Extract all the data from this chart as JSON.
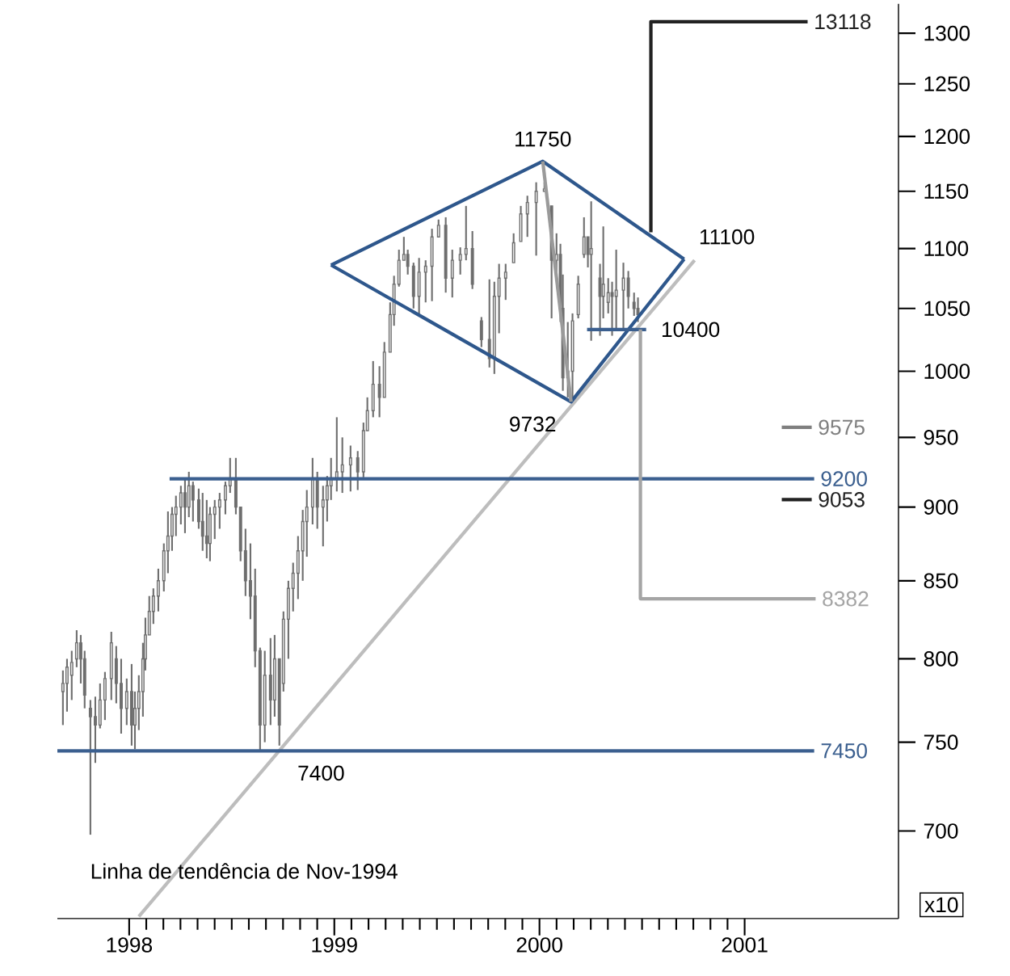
{
  "chart_data": {
    "type": "candlestick",
    "color": "#6e6e6e",
    "ylabel": "x10",
    "log": "y",
    "xlim": [
      1997.65,
      2001.75
    ],
    "xticks": [
      1998,
      1999,
      2000,
      2001
    ],
    "ylim": [
      654,
      1330
    ],
    "yticks": [
      700,
      750,
      800,
      850,
      900,
      950,
      1000,
      1050,
      1100,
      1150,
      1200,
      1250,
      1300
    ],
    "x": [
      1997.677,
      1997.697,
      1997.72,
      1997.744,
      1997.764,
      1997.783,
      1997.811,
      1997.835,
      1997.858,
      1997.882,
      1997.913,
      1997.937,
      1997.961,
      1997.988,
      1998.012,
      1998.028,
      1998.047,
      1998.067,
      1998.079,
      1998.098,
      1998.118,
      1998.142,
      1998.169,
      1998.189,
      1998.209,
      1998.228,
      1998.252,
      1998.272,
      1998.291,
      1998.311,
      1998.339,
      1998.358,
      1998.378,
      1998.394,
      1998.417,
      1998.441,
      1998.469,
      1998.492,
      1998.52,
      1998.543,
      1998.567,
      1998.591,
      1998.614,
      1998.638,
      1998.661,
      1998.689,
      1998.709,
      1998.732,
      1998.752,
      1998.776,
      1998.799,
      1998.823,
      1998.846,
      1998.866,
      1998.894,
      1998.917,
      1998.945,
      1998.965,
      1998.984,
      1999.012,
      1999.039,
      1999.079,
      1999.114,
      1999.142,
      1999.161,
      1999.189,
      1999.22,
      1999.244,
      1999.272,
      1999.291,
      1999.315,
      1999.339,
      1999.358,
      1999.386,
      1999.413,
      1999.445,
      1999.476,
      1999.508,
      1999.543,
      1999.575,
      1999.614,
      1999.642,
      1999.673,
      1999.717,
      1999.756,
      1999.78,
      1999.803,
      1999.835,
      1999.874,
      1999.909,
      1999.941,
      1999.984,
      2000.024,
      2000.059,
      2000.083,
      2000.102,
      2000.114,
      2000.138,
      2000.161,
      2000.189,
      2000.217,
      2000.236,
      2000.252,
      2000.295,
      2000.311,
      2000.335,
      2000.354,
      2000.374,
      2000.409,
      2000.433,
      2000.461,
      2000.48
    ],
    "ohlc": [
      [
        780,
        793,
        760,
        785
      ],
      [
        785,
        800,
        768,
        795
      ],
      [
        790,
        805,
        775,
        798
      ],
      [
        800,
        818,
        795,
        810
      ],
      [
        810,
        815,
        785,
        800
      ],
      [
        800,
        805,
        770,
        778
      ],
      [
        770,
        775,
        698,
        765
      ],
      [
        765,
        777,
        738,
        760
      ],
      [
        760,
        785,
        758,
        775
      ],
      [
        775,
        792,
        763,
        788
      ],
      [
        788,
        817,
        775,
        810
      ],
      [
        800,
        808,
        773,
        785
      ],
      [
        785,
        800,
        755,
        770
      ],
      [
        770,
        788,
        760,
        780
      ],
      [
        780,
        797,
        748,
        760
      ],
      [
        760,
        780,
        746,
        770
      ],
      [
        770,
        790,
        757,
        780
      ],
      [
        780,
        810,
        765,
        800
      ],
      [
        800,
        826,
        793,
        815
      ],
      [
        815,
        840,
        815,
        830
      ],
      [
        830,
        845,
        822,
        840
      ],
      [
        840,
        858,
        830,
        850
      ],
      [
        850,
        875,
        843,
        870
      ],
      [
        870,
        897,
        855,
        880
      ],
      [
        880,
        900,
        870,
        895
      ],
      [
        895,
        908,
        880,
        900
      ],
      [
        900,
        915,
        888,
        910
      ],
      [
        910,
        920,
        882,
        900
      ],
      [
        900,
        925,
        893,
        915
      ],
      [
        915,
        918,
        890,
        905
      ],
      [
        905,
        913,
        885,
        890
      ],
      [
        890,
        910,
        870,
        880
      ],
      [
        880,
        905,
        865,
        875
      ],
      [
        875,
        900,
        863,
        895
      ],
      [
        895,
        905,
        878,
        900
      ],
      [
        900,
        910,
        885,
        905
      ],
      [
        905,
        918,
        895,
        915
      ],
      [
        915,
        935,
        910,
        920
      ],
      [
        920,
        935,
        895,
        900
      ],
      [
        900,
        900,
        863,
        870
      ],
      [
        870,
        885,
        840,
        850
      ],
      [
        850,
        875,
        825,
        840
      ],
      [
        840,
        858,
        795,
        805
      ],
      [
        805,
        807,
        745,
        760
      ],
      [
        760,
        805,
        750,
        790
      ],
      [
        790,
        813,
        760,
        775
      ],
      [
        775,
        815,
        765,
        800
      ],
      [
        800,
        800,
        748,
        760
      ],
      [
        785,
        830,
        780,
        825
      ],
      [
        825,
        850,
        800,
        845
      ],
      [
        845,
        862,
        830,
        855
      ],
      [
        855,
        880,
        838,
        870
      ],
      [
        870,
        898,
        850,
        890
      ],
      [
        890,
        912,
        866,
        900
      ],
      [
        900,
        935,
        888,
        920
      ],
      [
        920,
        925,
        885,
        900
      ],
      [
        900,
        915,
        873,
        905
      ],
      [
        905,
        922,
        890,
        915
      ],
      [
        915,
        935,
        905,
        920
      ],
      [
        920,
        965,
        911,
        925
      ],
      [
        925,
        950,
        910,
        930
      ],
      [
        930,
        944,
        911,
        935
      ],
      [
        935,
        940,
        912,
        925
      ],
      [
        925,
        961,
        921,
        955
      ],
      [
        955,
        980,
        955,
        970
      ],
      [
        970,
        1008,
        965,
        990
      ],
      [
        990,
        1004,
        965,
        980
      ],
      [
        980,
        1023,
        980,
        1015
      ],
      [
        1015,
        1055,
        1015,
        1045
      ],
      [
        1045,
        1077,
        1036,
        1070
      ],
      [
        1070,
        1099,
        1068,
        1090
      ],
      [
        1090,
        1110,
        1090,
        1095
      ],
      [
        1095,
        1099,
        1078,
        1085
      ],
      [
        1085,
        1088,
        1050,
        1060
      ],
      [
        1060,
        1092,
        1044,
        1080
      ],
      [
        1080,
        1090,
        1055,
        1085
      ],
      [
        1085,
        1117,
        1056,
        1110
      ],
      [
        1110,
        1125,
        1110,
        1120
      ],
      [
        1120,
        1127,
        1063,
        1075
      ],
      [
        1075,
        1099,
        1059,
        1090
      ],
      [
        1090,
        1101,
        1078,
        1095
      ],
      [
        1095,
        1137,
        1090,
        1100
      ],
      [
        1100,
        1115,
        1066,
        1070
      ],
      [
        1040,
        1043,
        1019,
        1025
      ],
      [
        1025,
        1074,
        1003,
        1010
      ],
      [
        1010,
        1072,
        998,
        1060
      ],
      [
        1060,
        1087,
        1030,
        1075
      ],
      [
        1075,
        1087,
        1057,
        1080
      ],
      [
        1088,
        1113,
        1088,
        1105
      ],
      [
        1106,
        1137,
        1106,
        1130
      ],
      [
        1130,
        1146,
        1110,
        1140
      ],
      [
        1140,
        1158,
        1094,
        1150
      ],
      [
        1150,
        1158,
        1150,
        1152
      ],
      [
        1137,
        1137,
        1042,
        1090
      ],
      [
        1090,
        1113,
        1076,
        1095
      ],
      [
        1095,
        1104,
        1039,
        1050
      ],
      [
        1050,
        1078,
        985,
        995
      ],
      [
        995,
        1039,
        980,
        1000
      ],
      [
        1000,
        1046,
        976,
        1040
      ],
      [
        1045,
        1077,
        1042,
        1070
      ],
      [
        1095,
        1127,
        1092,
        1110
      ],
      [
        1110,
        1110,
        1084,
        1095
      ],
      [
        1095,
        1141,
        1024,
        1100
      ],
      [
        1075,
        1087,
        1028,
        1060
      ],
      [
        1060,
        1119,
        1042,
        1070
      ],
      [
        1055,
        1075,
        1046,
        1063
      ],
      [
        1063,
        1072,
        1028,
        1060
      ],
      [
        1060,
        1099,
        1032,
        1065
      ],
      [
        1065,
        1088,
        1032,
        1075
      ],
      [
        1075,
        1081,
        1050,
        1060
      ],
      [
        1055,
        1063,
        1044,
        1050
      ],
      [
        1050,
        1059,
        1039,
        1045
      ]
    ],
    "series": [
      {
        "type": "line",
        "color": "#bdbdbd",
        "x": [
          1998.047,
          2000.756
        ],
        "values": [
          655,
          1090
        ]
      },
      {
        "type": "line",
        "color": "#3b5f8f",
        "name": "7450",
        "x": [
          1997.65,
          2001.339
        ],
        "values": [
          745,
          745
        ]
      },
      {
        "type": "line",
        "color": "#3b5f8f",
        "name": "9200",
        "x": [
          1998.197,
          2001.339
        ],
        "values": [
          920,
          920
        ]
      },
      {
        "type": "line",
        "color": "#2e578c",
        "x": [
          1998.984,
          2000.016,
          2000.705
        ],
        "values": [
          1086,
          1177,
          1091
        ]
      },
      {
        "type": "line",
        "color": "#2e578c",
        "x": [
          1998.984,
          2000.154,
          2000.705
        ],
        "values": [
          1086,
          976.6,
          1091
        ]
      },
      {
        "type": "line",
        "color": "#9a9a9a",
        "x": [
          2000.016,
          2000.154
        ],
        "values": [
          1177,
          976.6
        ]
      },
      {
        "type": "line",
        "color": "#3b5f8f",
        "x": [
          2000.232,
          2000.52
        ],
        "values": [
          1033,
          1033
        ]
      },
      {
        "type": "line",
        "color": "#222222",
        "name": "13118",
        "x": [
          2000.543,
          2000.543,
          2001.307
        ],
        "values": [
          1114,
          1311.8,
          1311.8
        ]
      },
      {
        "type": "line",
        "color": "#a5a5a5",
        "name": "8382",
        "x": [
          2000.492,
          2000.492,
          2001.346
        ],
        "values": [
          1033,
          838.2,
          838.2
        ]
      },
      {
        "type": "line",
        "color": "#7f7f7f",
        "name": "9575",
        "x": [
          2001.181,
          2001.327
        ],
        "values": [
          957.5,
          957.5
        ]
      },
      {
        "type": "line",
        "color": "#222222",
        "name": "9053",
        "x": [
          2001.181,
          2001.327
        ],
        "values": [
          905.3,
          905.3
        ]
      }
    ],
    "annotations": [
      {
        "text": "11750",
        "x": 2000.016,
        "y": 1177
      },
      {
        "text": "9732",
        "x": 2000.154,
        "y": 976.6
      },
      {
        "text": "7400",
        "x": 1998.748,
        "y": 745
      },
      {
        "text": "11100",
        "x": 2000.705,
        "y": 1091
      },
      {
        "text": "10400",
        "x": 2000.52,
        "y": 1033
      },
      "Linha de tendência de Nov-1994"
    ]
  }
}
